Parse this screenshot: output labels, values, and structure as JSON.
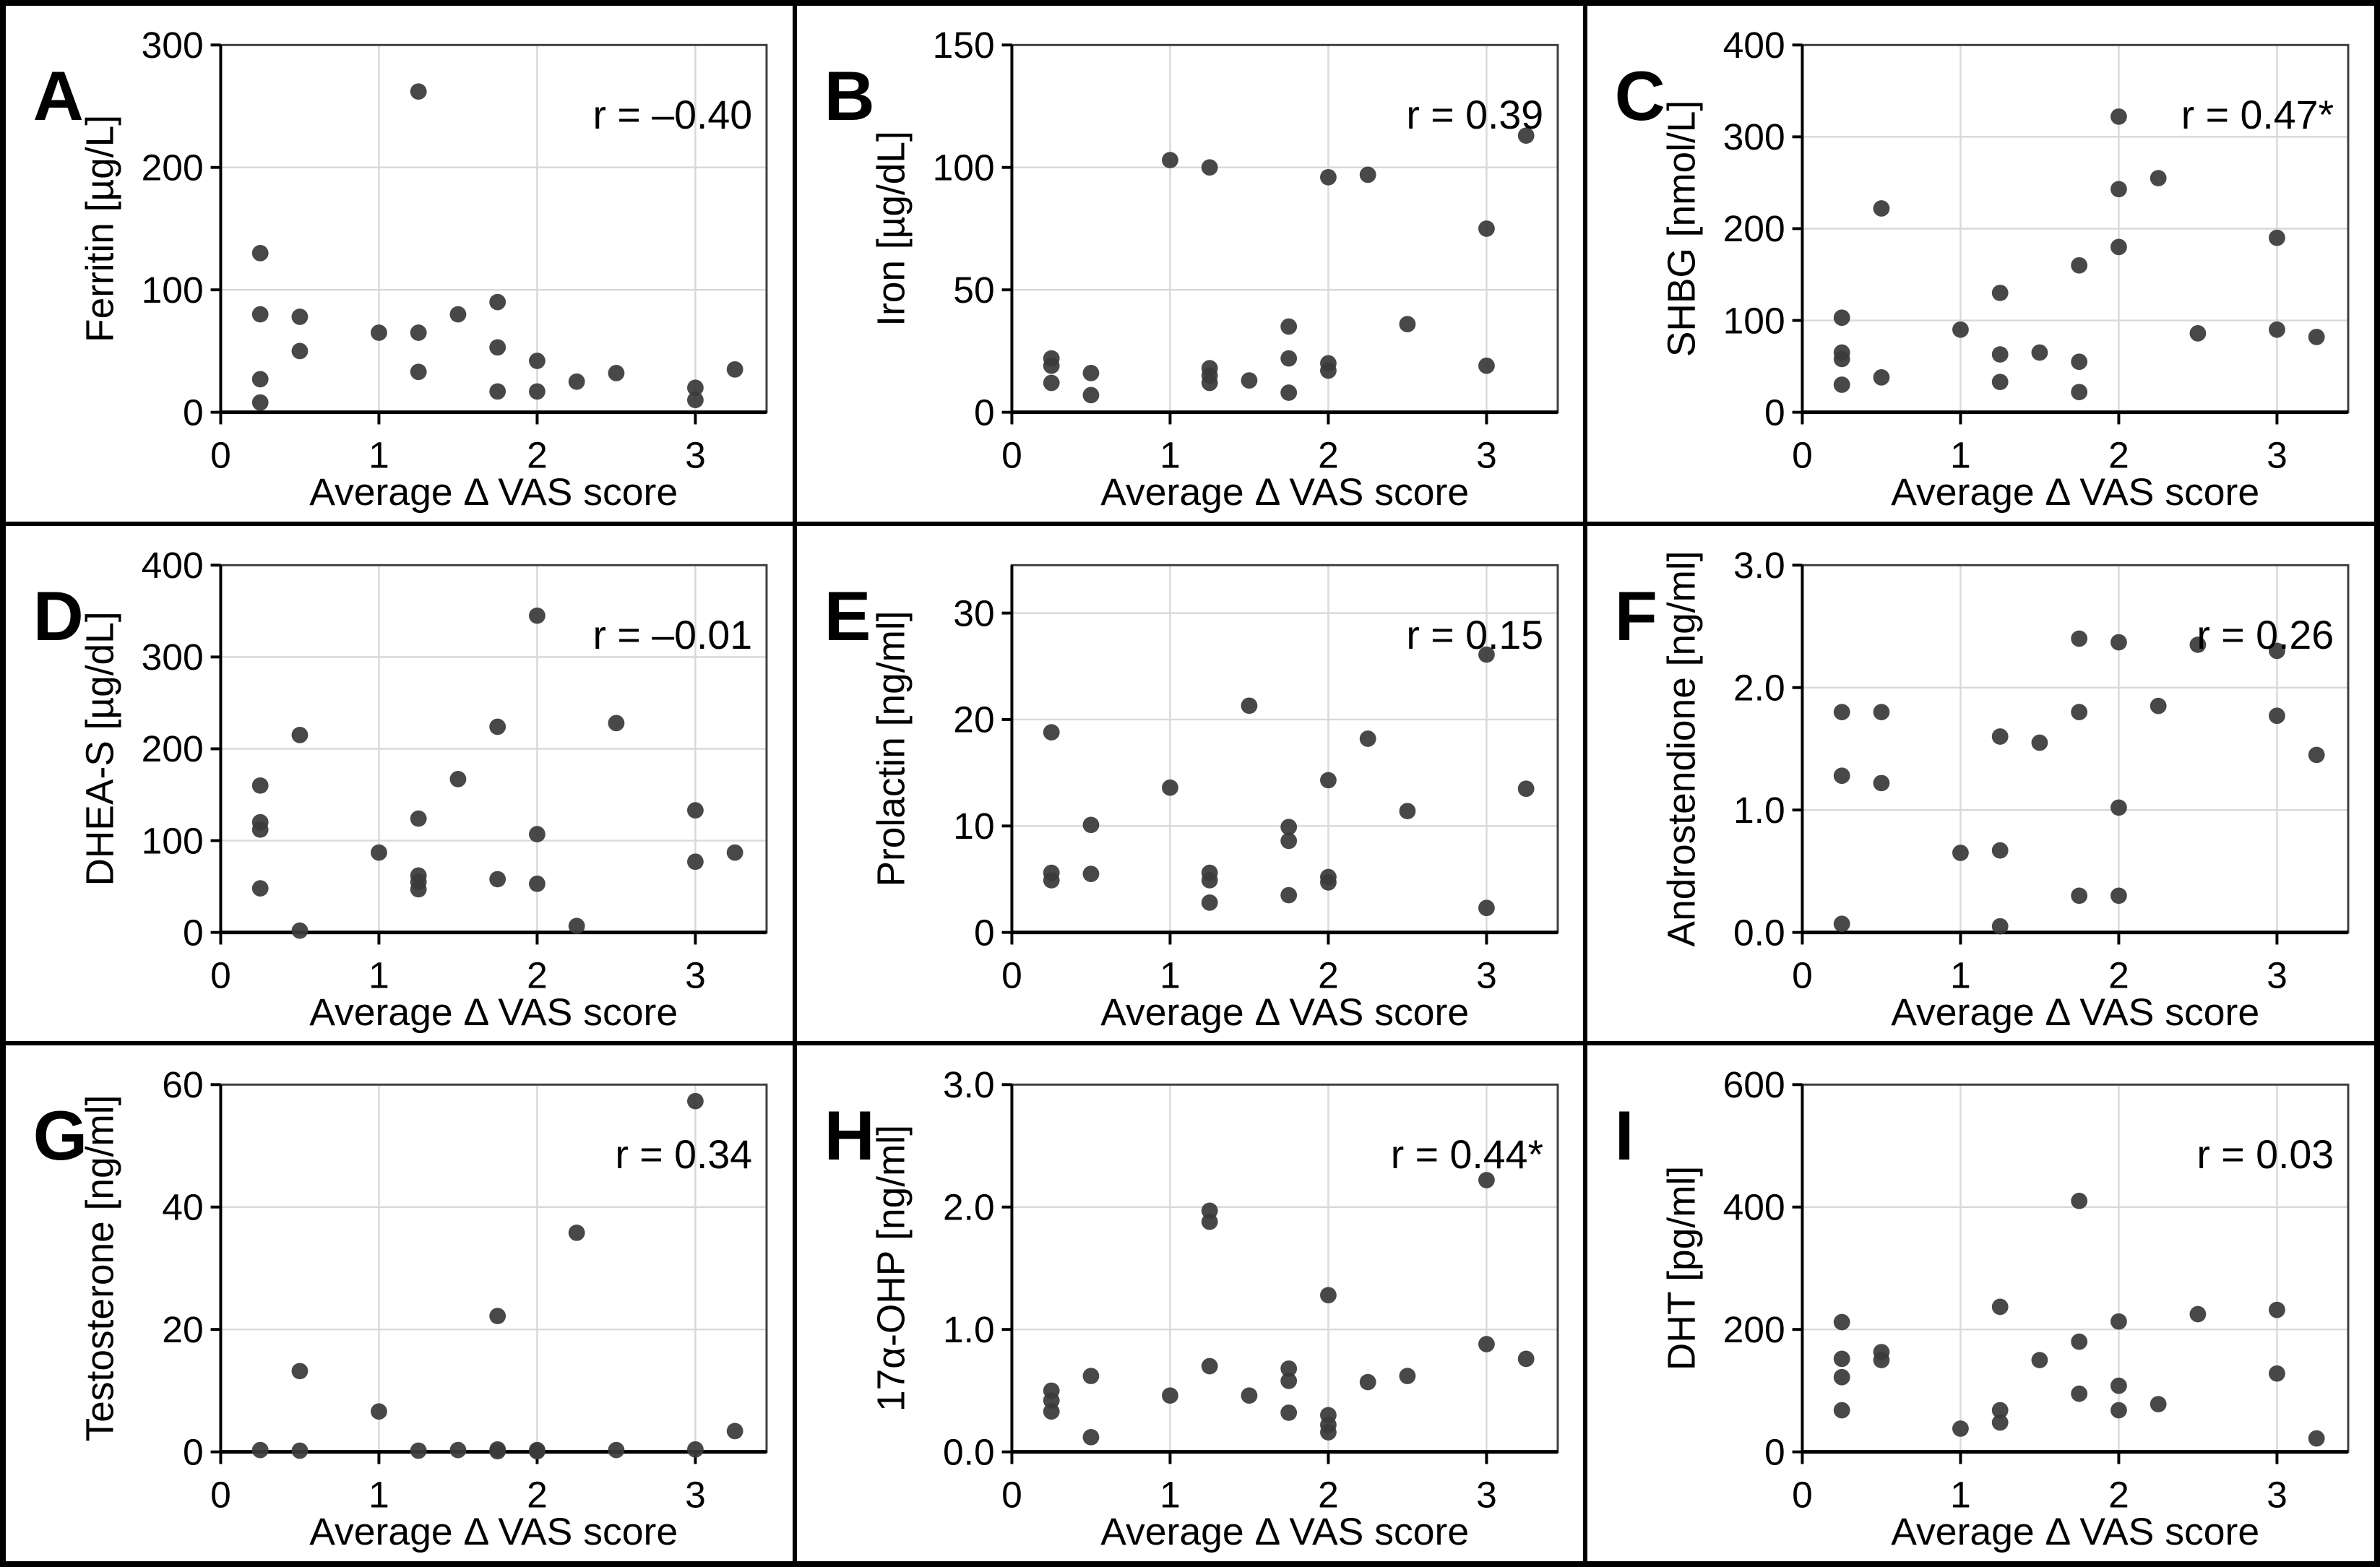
{
  "figure": {
    "xlabel": "Average Δ VAS score",
    "colors": {
      "background": "#FFFFFF",
      "marker": "#3A3A3A",
      "gridline": "#D9D9D9",
      "axis": "#000000",
      "plot_border": "#3F3F3F",
      "tick_label": "#000000",
      "r_default": "#000000",
      "r_significant": "#1155CC",
      "cell_border": "#000000"
    }
  },
  "chart_data": [
    {
      "type": "scatter",
      "panel": "A",
      "ylabel": "Ferritin [µg/L]",
      "xlabel": "Average Δ VAS score",
      "r_label": "r = –0.40",
      "r_significant": false,
      "xlim": [
        0,
        3.45
      ],
      "xticks": [
        0,
        1,
        2,
        3
      ],
      "ylim": [
        0,
        300
      ],
      "yticks": [
        0,
        100,
        200,
        300
      ],
      "ytick_decimals": 0,
      "points": [
        [
          0.25,
          130
        ],
        [
          0.25,
          80
        ],
        [
          0.25,
          27
        ],
        [
          0.25,
          8
        ],
        [
          0.5,
          78
        ],
        [
          0.5,
          50
        ],
        [
          1,
          65
        ],
        [
          1.25,
          262
        ],
        [
          1.25,
          65
        ],
        [
          1.25,
          33
        ],
        [
          1.5,
          80
        ],
        [
          1.75,
          90
        ],
        [
          1.75,
          53
        ],
        [
          1.75,
          17
        ],
        [
          2,
          42
        ],
        [
          2,
          17
        ],
        [
          2.25,
          25
        ],
        [
          2.5,
          32
        ],
        [
          3,
          20
        ],
        [
          3,
          10
        ],
        [
          3.25,
          35
        ]
      ]
    },
    {
      "type": "scatter",
      "panel": "B",
      "ylabel": "Iron [µg/dL]",
      "xlabel": "Average Δ VAS score",
      "r_label": "r = 0.39",
      "r_significant": false,
      "xlim": [
        0,
        3.45
      ],
      "xticks": [
        0,
        1,
        2,
        3
      ],
      "ylim": [
        0,
        150
      ],
      "yticks": [
        0,
        50,
        100,
        150
      ],
      "ytick_decimals": 0,
      "points": [
        [
          0.25,
          22
        ],
        [
          0.25,
          19
        ],
        [
          0.25,
          12
        ],
        [
          0.5,
          16
        ],
        [
          0.5,
          7
        ],
        [
          1,
          103
        ],
        [
          1.25,
          100
        ],
        [
          1.25,
          18
        ],
        [
          1.25,
          15
        ],
        [
          1.25,
          12
        ],
        [
          1.5,
          13
        ],
        [
          1.75,
          35
        ],
        [
          1.75,
          22
        ],
        [
          1.75,
          8
        ],
        [
          2,
          96
        ],
        [
          2,
          20
        ],
        [
          2,
          17
        ],
        [
          2.25,
          97
        ],
        [
          2.5,
          36
        ],
        [
          3,
          75
        ],
        [
          3,
          19
        ],
        [
          3.25,
          113
        ]
      ]
    },
    {
      "type": "scatter",
      "panel": "C",
      "ylabel": "SHBG [nmol/L]",
      "xlabel": "Average Δ VAS score",
      "r_label": "r = 0.47*",
      "r_significant": true,
      "xlim": [
        0,
        3.45
      ],
      "xticks": [
        0,
        1,
        2,
        3
      ],
      "ylim": [
        0,
        400
      ],
      "yticks": [
        0,
        100,
        200,
        300,
        400
      ],
      "ytick_decimals": 0,
      "points": [
        [
          0.25,
          103
        ],
        [
          0.25,
          65
        ],
        [
          0.25,
          58
        ],
        [
          0.25,
          30
        ],
        [
          0.5,
          222
        ],
        [
          0.5,
          38
        ],
        [
          1,
          90
        ],
        [
          1.25,
          130
        ],
        [
          1.25,
          63
        ],
        [
          1.25,
          33
        ],
        [
          1.5,
          65
        ],
        [
          1.75,
          160
        ],
        [
          1.75,
          55
        ],
        [
          1.75,
          22
        ],
        [
          2,
          322
        ],
        [
          2,
          243
        ],
        [
          2,
          180
        ],
        [
          2.25,
          255
        ],
        [
          2.5,
          86
        ],
        [
          3,
          190
        ],
        [
          3,
          90
        ],
        [
          3.25,
          82
        ]
      ]
    },
    {
      "type": "scatter",
      "panel": "D",
      "ylabel": "DHEA-S [µg/dL]",
      "xlabel": "Average Δ VAS score",
      "r_label": "r = –0.01",
      "r_significant": false,
      "xlim": [
        0,
        3.45
      ],
      "xticks": [
        0,
        1,
        2,
        3
      ],
      "ylim": [
        0,
        400
      ],
      "yticks": [
        0,
        100,
        200,
        300,
        400
      ],
      "ytick_decimals": 0,
      "points": [
        [
          0.25,
          160
        ],
        [
          0.25,
          120
        ],
        [
          0.25,
          112
        ],
        [
          0.25,
          48
        ],
        [
          0.5,
          215
        ],
        [
          0.5,
          2
        ],
        [
          1,
          87
        ],
        [
          1.25,
          124
        ],
        [
          1.25,
          62
        ],
        [
          1.25,
          55
        ],
        [
          1.25,
          47
        ],
        [
          1.5,
          167
        ],
        [
          1.75,
          224
        ],
        [
          1.75,
          58
        ],
        [
          2,
          345
        ],
        [
          2,
          107
        ],
        [
          2,
          53
        ],
        [
          2.25,
          7
        ],
        [
          2.5,
          228
        ],
        [
          3,
          133
        ],
        [
          3,
          77
        ],
        [
          3.25,
          87
        ]
      ]
    },
    {
      "type": "scatter",
      "panel": "E",
      "ylabel": "Prolactin [ng/ml]",
      "xlabel": "Average Δ VAS score",
      "r_label": "r = 0.15",
      "r_significant": false,
      "xlim": [
        0,
        3.45
      ],
      "xticks": [
        0,
        1,
        2,
        3
      ],
      "ylim": [
        0,
        34.5
      ],
      "yticks": [
        0,
        10,
        20,
        30
      ],
      "ytick_decimals": 0,
      "points": [
        [
          0.25,
          18.8
        ],
        [
          0.25,
          5.6
        ],
        [
          0.25,
          4.9
        ],
        [
          0.5,
          10.1
        ],
        [
          0.5,
          5.5
        ],
        [
          1,
          13.6
        ],
        [
          1.25,
          5.6
        ],
        [
          1.25,
          4.9
        ],
        [
          1.25,
          2.8
        ],
        [
          1.5,
          21.3
        ],
        [
          1.75,
          9.9
        ],
        [
          1.75,
          8.6
        ],
        [
          1.75,
          3.5
        ],
        [
          2,
          14.3
        ],
        [
          2,
          5.2
        ],
        [
          2,
          4.7
        ],
        [
          2.25,
          18.2
        ],
        [
          2.5,
          11.4
        ],
        [
          3,
          26.1
        ],
        [
          3,
          2.3
        ],
        [
          3.25,
          13.5
        ]
      ]
    },
    {
      "type": "scatter",
      "panel": "F",
      "ylabel": "Androstendione [ng/ml]",
      "xlabel": "Average Δ VAS score",
      "r_label": "r = 0.26",
      "r_significant": false,
      "xlim": [
        0,
        3.45
      ],
      "xticks": [
        0,
        1,
        2,
        3
      ],
      "ylim": [
        0,
        3.0
      ],
      "yticks": [
        0,
        1,
        2,
        3
      ],
      "ytick_decimals": 1,
      "points": [
        [
          0.25,
          1.8
        ],
        [
          0.25,
          1.28
        ],
        [
          0.25,
          0.07
        ],
        [
          0.5,
          1.8
        ],
        [
          0.5,
          1.22
        ],
        [
          1,
          0.65
        ],
        [
          1.25,
          1.6
        ],
        [
          1.25,
          0.67
        ],
        [
          1.25,
          0.05
        ],
        [
          1.5,
          1.55
        ],
        [
          1.75,
          2.4
        ],
        [
          1.75,
          1.8
        ],
        [
          1.75,
          0.3
        ],
        [
          2,
          2.37
        ],
        [
          2,
          1.02
        ],
        [
          2,
          0.3
        ],
        [
          2.25,
          1.85
        ],
        [
          2.5,
          2.35
        ],
        [
          3,
          2.3
        ],
        [
          3,
          1.77
        ],
        [
          3.25,
          1.45
        ]
      ]
    },
    {
      "type": "scatter",
      "panel": "G",
      "ylabel": "Testosterone [ng/ml]",
      "xlabel": "Average Δ VAS score",
      "r_label": "r = 0.34",
      "r_significant": false,
      "xlim": [
        0,
        3.45
      ],
      "xticks": [
        0,
        1,
        2,
        3
      ],
      "ylim": [
        0,
        60
      ],
      "yticks": [
        0,
        20,
        40,
        60
      ],
      "ytick_decimals": 0,
      "points": [
        [
          0.25,
          0.3
        ],
        [
          0.5,
          13.2
        ],
        [
          0.5,
          0.2
        ],
        [
          1,
          6.6
        ],
        [
          1.25,
          0.2
        ],
        [
          1.5,
          0.3
        ],
        [
          1.75,
          22.2
        ],
        [
          1.75,
          0.4
        ],
        [
          1.75,
          0.1
        ],
        [
          2,
          0.3
        ],
        [
          2,
          0.1
        ],
        [
          2.25,
          35.8
        ],
        [
          2.5,
          0.3
        ],
        [
          3,
          57.3
        ],
        [
          3,
          0.4
        ],
        [
          3.25,
          3.4
        ]
      ]
    },
    {
      "type": "scatter",
      "panel": "H",
      "ylabel": "17α-OHP [ng/ml]",
      "xlabel": "Average Δ VAS score",
      "r_label": "r = 0.44*",
      "r_significant": true,
      "xlim": [
        0,
        3.45
      ],
      "xticks": [
        0,
        1,
        2,
        3
      ],
      "ylim": [
        0,
        3.0
      ],
      "yticks": [
        0,
        1,
        2,
        3
      ],
      "ytick_decimals": 1,
      "points": [
        [
          0.25,
          0.5
        ],
        [
          0.25,
          0.42
        ],
        [
          0.25,
          0.33
        ],
        [
          0.5,
          0.62
        ],
        [
          0.5,
          0.12
        ],
        [
          1,
          0.46
        ],
        [
          1.25,
          1.97
        ],
        [
          1.25,
          1.88
        ],
        [
          1.25,
          0.7
        ],
        [
          1.5,
          0.46
        ],
        [
          1.75,
          0.68
        ],
        [
          1.75,
          0.58
        ],
        [
          1.75,
          0.32
        ],
        [
          2,
          1.28
        ],
        [
          2,
          0.3
        ],
        [
          2,
          0.22
        ],
        [
          2,
          0.16
        ],
        [
          2.25,
          0.57
        ],
        [
          2.5,
          0.62
        ],
        [
          3,
          2.22
        ],
        [
          3,
          0.88
        ],
        [
          3.25,
          0.76
        ]
      ]
    },
    {
      "type": "scatter",
      "panel": "I",
      "ylabel": "DHT [pg/ml]",
      "xlabel": "Average Δ VAS score",
      "r_label": "r = 0.03",
      "r_significant": false,
      "xlim": [
        0,
        3.45
      ],
      "xticks": [
        0,
        1,
        2,
        3
      ],
      "ylim": [
        0,
        600
      ],
      "yticks": [
        0,
        200,
        400,
        600
      ],
      "ytick_decimals": 0,
      "points": [
        [
          0.25,
          212
        ],
        [
          0.25,
          152
        ],
        [
          0.25,
          122
        ],
        [
          0.25,
          68
        ],
        [
          0.5,
          163
        ],
        [
          0.5,
          150
        ],
        [
          1,
          38
        ],
        [
          1.25,
          237
        ],
        [
          1.25,
          68
        ],
        [
          1.25,
          48
        ],
        [
          1.5,
          150
        ],
        [
          1.75,
          410
        ],
        [
          1.75,
          180
        ],
        [
          1.75,
          95
        ],
        [
          2,
          213
        ],
        [
          2,
          108
        ],
        [
          2,
          68
        ],
        [
          2.25,
          78
        ],
        [
          2.5,
          225
        ],
        [
          3,
          232
        ],
        [
          3,
          128
        ],
        [
          3.25,
          22
        ]
      ]
    }
  ]
}
